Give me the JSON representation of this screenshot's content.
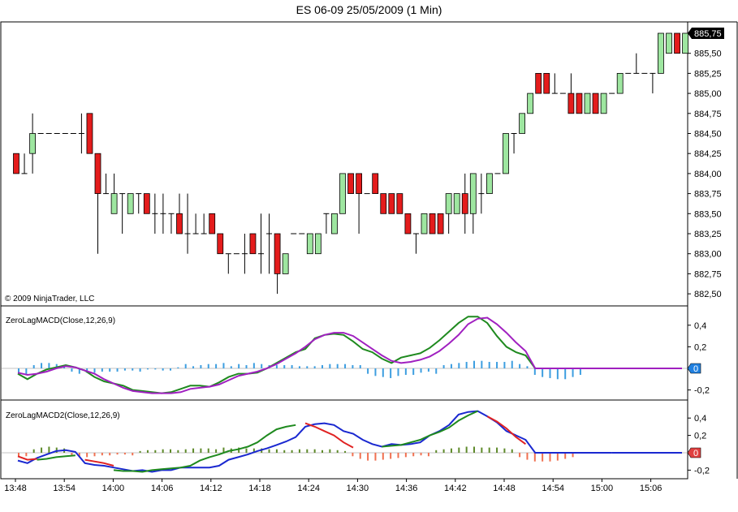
{
  "window": {
    "title": "ES 06-09  25/05/2009 (1 Min)"
  },
  "copyright": "© 2009 NinjaTrader, LLC",
  "colors": {
    "up_candle": "#9ee6a0",
    "down_candle": "#e41c1c",
    "macd_line": "#1f8a1f",
    "signal_line": "#a020c0",
    "histogram_blue": "#3d9ee0",
    "macd2_line": "#1a28d0",
    "macd2_signal": "#e02222",
    "hist2_pos": "#5e8a2a",
    "hist2_neg": "#f07050",
    "last_price_bg": "#000000",
    "zero_box_blue": "#2080e0",
    "zero_box_red": "#e04040"
  },
  "chart_data": [
    {
      "type": "candlestick",
      "title": "ES 06-09  25/05/2009 (1 Min)",
      "ylim": [
        882.4,
        886.0
      ],
      "y_ticks": [
        "885,50",
        "885,25",
        "885,00",
        "884,75",
        "884,50",
        "884,25",
        "884,00",
        "883,75",
        "883,50",
        "883,25",
        "883,00",
        "882,75",
        "882,50"
      ],
      "y_tick_values": [
        885.5,
        885.25,
        885.0,
        884.75,
        884.5,
        884.25,
        884.0,
        883.75,
        883.5,
        883.25,
        883.0,
        882.75,
        882.5
      ],
      "last_price_label": "885,75",
      "last_price": 885.75,
      "x_ticks": [
        "13:48",
        "13:54",
        "14:00",
        "14:06",
        "14:12",
        "14:18",
        "14:24",
        "14:30",
        "14:36",
        "14:42",
        "14:48",
        "14:54",
        "15:00",
        "15:06"
      ],
      "candles": [
        {
          "o": 884.25,
          "h": 884.25,
          "l": 884.0,
          "c": 884.0
        },
        {
          "o": 884.0,
          "h": 884.25,
          "l": 884.0,
          "c": 884.0
        },
        {
          "o": 884.25,
          "h": 884.75,
          "l": 884.0,
          "c": 884.5
        },
        {
          "o": 884.5,
          "h": 884.5,
          "l": 884.5,
          "c": 884.5
        },
        {
          "o": 884.5,
          "h": 884.5,
          "l": 884.5,
          "c": 884.5
        },
        {
          "o": 884.5,
          "h": 884.5,
          "l": 884.5,
          "c": 884.5
        },
        {
          "o": 884.5,
          "h": 884.5,
          "l": 884.5,
          "c": 884.5
        },
        {
          "o": 884.5,
          "h": 884.5,
          "l": 884.5,
          "c": 884.5
        },
        {
          "o": 884.5,
          "h": 884.75,
          "l": 884.25,
          "c": 884.5
        },
        {
          "o": 884.75,
          "h": 884.75,
          "l": 884.25,
          "c": 884.25
        },
        {
          "o": 884.25,
          "h": 884.25,
          "l": 883.0,
          "c": 883.75
        },
        {
          "o": 883.75,
          "h": 884.0,
          "l": 883.75,
          "c": 883.75
        },
        {
          "o": 883.5,
          "h": 884.0,
          "l": 883.5,
          "c": 883.75
        },
        {
          "o": 883.75,
          "h": 883.75,
          "l": 883.25,
          "c": 883.75
        },
        {
          "o": 883.5,
          "h": 883.75,
          "l": 883.5,
          "c": 883.75
        },
        {
          "o": 883.75,
          "h": 883.75,
          "l": 883.5,
          "c": 883.75
        },
        {
          "o": 883.75,
          "h": 883.75,
          "l": 883.5,
          "c": 883.5
        },
        {
          "o": 883.5,
          "h": 883.75,
          "l": 883.25,
          "c": 883.5
        },
        {
          "o": 883.5,
          "h": 883.75,
          "l": 883.25,
          "c": 883.5
        },
        {
          "o": 883.5,
          "h": 883.5,
          "l": 883.25,
          "c": 883.5
        },
        {
          "o": 883.5,
          "h": 883.75,
          "l": 883.25,
          "c": 883.25
        },
        {
          "o": 883.25,
          "h": 883.75,
          "l": 883.0,
          "c": 883.25
        },
        {
          "o": 883.25,
          "h": 883.5,
          "l": 883.25,
          "c": 883.25
        },
        {
          "o": 883.25,
          "h": 883.5,
          "l": 883.25,
          "c": 883.25
        },
        {
          "o": 883.5,
          "h": 883.5,
          "l": 883.25,
          "c": 883.25
        },
        {
          "o": 883.25,
          "h": 883.25,
          "l": 883.0,
          "c": 883.0
        },
        {
          "o": 883.0,
          "h": 883.0,
          "l": 882.75,
          "c": 883.0
        },
        {
          "o": 883.0,
          "h": 883.0,
          "l": 883.0,
          "c": 883.0
        },
        {
          "o": 883.0,
          "h": 883.25,
          "l": 882.75,
          "c": 883.0
        },
        {
          "o": 883.25,
          "h": 883.25,
          "l": 883.0,
          "c": 883.0
        },
        {
          "o": 883.0,
          "h": 883.5,
          "l": 882.75,
          "c": 883.0
        },
        {
          "o": 883.25,
          "h": 883.5,
          "l": 882.75,
          "c": 883.25
        },
        {
          "o": 883.25,
          "h": 883.25,
          "l": 882.5,
          "c": 882.75
        },
        {
          "o": 882.75,
          "h": 883.0,
          "l": 882.75,
          "c": 883.0
        },
        {
          "o": 883.25,
          "h": 883.25,
          "l": 883.25,
          "c": 883.25
        },
        {
          "o": 883.25,
          "h": 883.25,
          "l": 883.25,
          "c": 883.25
        },
        {
          "o": 883.0,
          "h": 883.25,
          "l": 883.0,
          "c": 883.25
        },
        {
          "o": 883.0,
          "h": 883.25,
          "l": 883.0,
          "c": 883.25
        },
        {
          "o": 883.5,
          "h": 883.5,
          "l": 883.25,
          "c": 883.5
        },
        {
          "o": 883.25,
          "h": 883.5,
          "l": 883.25,
          "c": 883.5
        },
        {
          "o": 883.5,
          "h": 884.0,
          "l": 883.5,
          "c": 884.0
        },
        {
          "o": 884.0,
          "h": 884.0,
          "l": 883.75,
          "c": 883.75
        },
        {
          "o": 884.0,
          "h": 884.0,
          "l": 883.25,
          "c": 883.75
        },
        {
          "o": 883.75,
          "h": 883.75,
          "l": 883.75,
          "c": 883.75
        },
        {
          "o": 884.0,
          "h": 884.0,
          "l": 883.75,
          "c": 883.75
        },
        {
          "o": 883.75,
          "h": 883.75,
          "l": 883.5,
          "c": 883.5
        },
        {
          "o": 883.75,
          "h": 883.75,
          "l": 883.5,
          "c": 883.5
        },
        {
          "o": 883.75,
          "h": 883.75,
          "l": 883.5,
          "c": 883.5
        },
        {
          "o": 883.5,
          "h": 883.5,
          "l": 883.25,
          "c": 883.25
        },
        {
          "o": 883.25,
          "h": 883.25,
          "l": 883.0,
          "c": 883.25
        },
        {
          "o": 883.25,
          "h": 883.5,
          "l": 883.25,
          "c": 883.5
        },
        {
          "o": 883.5,
          "h": 883.5,
          "l": 883.25,
          "c": 883.25
        },
        {
          "o": 883.5,
          "h": 883.5,
          "l": 883.25,
          "c": 883.25
        },
        {
          "o": 883.5,
          "h": 883.75,
          "l": 883.25,
          "c": 883.75
        },
        {
          "o": 883.5,
          "h": 883.75,
          "l": 883.5,
          "c": 883.75
        },
        {
          "o": 883.75,
          "h": 884.0,
          "l": 883.25,
          "c": 883.5
        },
        {
          "o": 883.5,
          "h": 884.0,
          "l": 883.25,
          "c": 884.0
        },
        {
          "o": 883.75,
          "h": 884.0,
          "l": 883.5,
          "c": 883.75
        },
        {
          "o": 883.75,
          "h": 884.0,
          "l": 883.75,
          "c": 884.0
        },
        {
          "o": 884.0,
          "h": 884.0,
          "l": 884.0,
          "c": 884.0
        },
        {
          "o": 884.0,
          "h": 884.5,
          "l": 884.0,
          "c": 884.5
        },
        {
          "o": 884.5,
          "h": 884.5,
          "l": 884.25,
          "c": 884.5
        },
        {
          "o": 884.5,
          "h": 884.75,
          "l": 884.5,
          "c": 884.75
        },
        {
          "o": 884.75,
          "h": 885.0,
          "l": 884.75,
          "c": 885.0
        },
        {
          "o": 885.25,
          "h": 885.25,
          "l": 885.0,
          "c": 885.0
        },
        {
          "o": 885.25,
          "h": 885.25,
          "l": 885.0,
          "c": 885.0
        },
        {
          "o": 885.0,
          "h": 885.25,
          "l": 885.0,
          "c": 885.0
        },
        {
          "o": 885.0,
          "h": 885.0,
          "l": 885.0,
          "c": 885.0
        },
        {
          "o": 885.0,
          "h": 885.25,
          "l": 884.75,
          "c": 884.75
        },
        {
          "o": 885.0,
          "h": 885.0,
          "l": 884.75,
          "c": 884.75
        },
        {
          "o": 884.75,
          "h": 885.0,
          "l": 884.75,
          "c": 885.0
        },
        {
          "o": 885.0,
          "h": 885.0,
          "l": 884.75,
          "c": 884.75
        },
        {
          "o": 884.75,
          "h": 885.0,
          "l": 884.75,
          "c": 885.0
        },
        {
          "o": 885.0,
          "h": 885.0,
          "l": 885.0,
          "c": 885.0
        },
        {
          "o": 885.0,
          "h": 885.25,
          "l": 885.0,
          "c": 885.25
        },
        {
          "o": 885.25,
          "h": 885.25,
          "l": 885.25,
          "c": 885.25
        },
        {
          "o": 885.25,
          "h": 885.5,
          "l": 885.25,
          "c": 885.25
        },
        {
          "o": 885.25,
          "h": 885.25,
          "l": 885.25,
          "c": 885.25
        },
        {
          "o": 885.25,
          "h": 885.25,
          "l": 885.0,
          "c": 885.25
        },
        {
          "o": 885.25,
          "h": 885.75,
          "l": 885.25,
          "c": 885.75
        },
        {
          "o": 885.5,
          "h": 885.75,
          "l": 885.5,
          "c": 885.75
        },
        {
          "o": 885.75,
          "h": 885.75,
          "l": 885.5,
          "c": 885.5
        },
        {
          "o": 885.5,
          "h": 885.75,
          "l": 885.5,
          "c": 885.75
        }
      ]
    },
    {
      "type": "line",
      "title": "ZeroLagMACD(Close,12,26,9)",
      "ylim": [
        -0.3,
        0.5
      ],
      "y_ticks": [
        "0,4",
        "0,2",
        "-0,2"
      ],
      "y_tick_values": [
        0.4,
        0.2,
        -0.2
      ],
      "zero_label": "0",
      "series": [
        {
          "role": "macd",
          "values": [
            -0.05,
            -0.1,
            -0.05,
            -0.01,
            0.01,
            0.03,
            0.01,
            -0.02,
            -0.08,
            -0.12,
            -0.14,
            -0.16,
            -0.2,
            -0.21,
            -0.22,
            -0.23,
            -0.22,
            -0.19,
            -0.16,
            -0.16,
            -0.17,
            -0.13,
            -0.08,
            -0.05,
            -0.05,
            -0.04,
            0.0,
            0.05,
            0.1,
            0.15,
            0.18,
            0.28,
            0.31,
            0.32,
            0.31,
            0.25,
            0.18,
            0.15,
            0.09,
            0.05,
            0.1,
            0.12,
            0.14,
            0.19,
            0.26,
            0.34,
            0.42,
            0.48,
            0.48,
            0.42,
            0.3,
            0.2,
            0.15,
            0.12,
            0.0,
            0.0,
            0.0,
            0.0,
            0.0,
            0.0,
            0.0,
            0.0,
            0.0
          ]
        },
        {
          "role": "signal",
          "values": [
            -0.04,
            -0.06,
            -0.05,
            -0.03,
            0.0,
            0.02,
            0.01,
            -0.02,
            -0.05,
            -0.1,
            -0.14,
            -0.18,
            -0.21,
            -0.22,
            -0.23,
            -0.23,
            -0.23,
            -0.22,
            -0.19,
            -0.18,
            -0.17,
            -0.15,
            -0.11,
            -0.07,
            -0.05,
            -0.03,
            0.0,
            0.04,
            0.09,
            0.14,
            0.2,
            0.27,
            0.31,
            0.33,
            0.33,
            0.3,
            0.24,
            0.18,
            0.12,
            0.07,
            0.05,
            0.06,
            0.08,
            0.11,
            0.16,
            0.23,
            0.31,
            0.41,
            0.46,
            0.47,
            0.41,
            0.33,
            0.24,
            0.16,
            0.0,
            0.0,
            0.0,
            0.0,
            0.0,
            0.0,
            0.0,
            0.0,
            0.0
          ]
        }
      ],
      "histogram": [
        -0.05,
        -0.06,
        0.03,
        0.05,
        0.05,
        0.04,
        0.03,
        -0.03,
        -0.05,
        -0.04,
        -0.04,
        -0.03,
        -0.03,
        -0.03,
        -0.02,
        -0.02,
        -0.03,
        -0.01,
        -0.01,
        -0.02,
        -0.02,
        0.01,
        0.04,
        0.02,
        0.03,
        0.04,
        0.04,
        0.05,
        0.02,
        0.04,
        0.03,
        0.05,
        0.04,
        0.03,
        0.03,
        0.03,
        0.03,
        0.02,
        0.02,
        0.02,
        0.03,
        0.04,
        0.04,
        0.04,
        0.03,
        0.03,
        -0.05,
        -0.07,
        -0.08,
        -0.09,
        -0.07,
        -0.06,
        -0.06,
        -0.04,
        -0.03,
        -0.05,
        0.03,
        0.04,
        0.05,
        0.06,
        0.07,
        0.07,
        0.06,
        0.06,
        0.06,
        0.07,
        0.04,
        0.02,
        -0.06,
        -0.08,
        -0.09,
        -0.1,
        -0.1,
        -0.08,
        -0.06,
        0.0
      ]
    },
    {
      "type": "line",
      "title": "ZeroLagMACD2(Close,12,26,9)",
      "ylim": [
        -0.3,
        0.5
      ],
      "y_ticks": [
        "0,4",
        "0,2",
        "-0,2"
      ],
      "y_tick_values": [
        0.4,
        0.2,
        -0.2
      ],
      "zero_label": "0",
      "series": [
        {
          "role": "macd2",
          "values": [
            -0.09,
            -0.12,
            -0.06,
            -0.02,
            0.02,
            0.03,
            0.01,
            -0.12,
            -0.14,
            -0.15,
            -0.17,
            -0.19,
            -0.21,
            -0.2,
            -0.22,
            -0.2,
            -0.2,
            -0.17,
            -0.17,
            -0.17,
            -0.17,
            -0.15,
            -0.08,
            -0.05,
            -0.02,
            0.02,
            0.05,
            0.09,
            0.13,
            0.18,
            0.3,
            0.33,
            0.34,
            0.32,
            0.25,
            0.22,
            0.15,
            0.1,
            0.07,
            0.1,
            0.09,
            0.1,
            0.12,
            0.2,
            0.25,
            0.32,
            0.44,
            0.47,
            0.48,
            0.42,
            0.35,
            0.25,
            0.2,
            0.15,
            0.0,
            0.0,
            0.0,
            0.0,
            0.0,
            0.0,
            0.0,
            0.0,
            0.0
          ]
        },
        {
          "role": "signal2_green",
          "values": [
            null,
            null,
            -0.08,
            -0.07,
            -0.05,
            -0.04,
            -0.03,
            null,
            null,
            null,
            -0.2,
            -0.21,
            -0.21,
            -0.22,
            -0.2,
            -0.19,
            -0.18,
            -0.17,
            -0.15,
            -0.09,
            -0.05,
            -0.02,
            0.02,
            0.04,
            0.07,
            0.12,
            0.2,
            0.27,
            0.3,
            0.32,
            null,
            null,
            null,
            null,
            null,
            null,
            null,
            null,
            0.07,
            0.08,
            0.09,
            0.12,
            0.15,
            0.2,
            0.24,
            0.29,
            0.37,
            0.43,
            0.48,
            null,
            null,
            null,
            null,
            null,
            null,
            null,
            null,
            null,
            null,
            null,
            null,
            null,
            null
          ]
        },
        {
          "role": "signal2_red",
          "values": [
            -0.04,
            -0.08,
            -0.07,
            null,
            null,
            null,
            null,
            -0.08,
            -0.1,
            -0.12,
            -0.15,
            null,
            null,
            null,
            null,
            null,
            null,
            null,
            null,
            null,
            null,
            null,
            null,
            null,
            null,
            null,
            null,
            null,
            null,
            null,
            0.34,
            0.3,
            0.25,
            0.2,
            0.12,
            0.06,
            null,
            null,
            null,
            null,
            null,
            null,
            null,
            null,
            null,
            null,
            null,
            null,
            null,
            0.42,
            0.36,
            0.28,
            0.18,
            0.1,
            null,
            null,
            null,
            null,
            null,
            null,
            null,
            null,
            null
          ]
        }
      ],
      "histogram": [
        -0.05,
        -0.04,
        0.04,
        0.06,
        0.07,
        0.06,
        0.05,
        -0.04,
        -0.05,
        -0.05,
        -0.04,
        -0.03,
        -0.03,
        -0.02,
        -0.02,
        -0.03,
        0.02,
        0.03,
        0.03,
        0.04,
        0.04,
        0.03,
        0.04,
        0.05,
        0.05,
        0.05,
        0.04,
        0.06,
        0.05,
        0.06,
        0.05,
        0.05,
        0.05,
        0.04,
        0.04,
        0.03,
        0.03,
        0.04,
        0.04,
        0.04,
        0.03,
        0.04,
        0.03,
        0.02,
        -0.04,
        -0.07,
        -0.09,
        -0.09,
        -0.08,
        -0.07,
        -0.06,
        -0.05,
        -0.04,
        -0.03,
        -0.04,
        0.03,
        0.04,
        0.05,
        0.06,
        0.07,
        0.07,
        0.06,
        0.06,
        0.06,
        0.05,
        0.04,
        -0.05,
        -0.08,
        -0.1,
        -0.1,
        -0.1,
        -0.09,
        -0.07,
        -0.05,
        0.0
      ]
    }
  ]
}
